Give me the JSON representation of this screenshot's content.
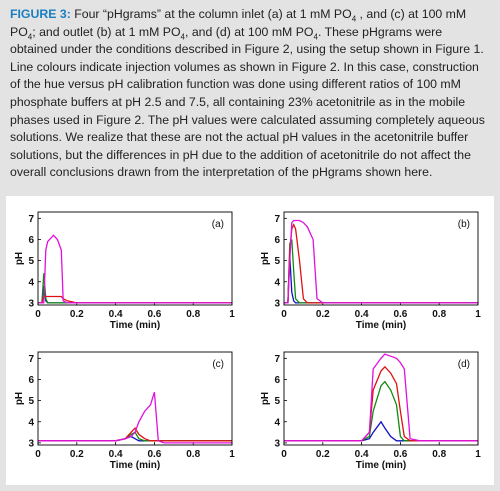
{
  "caption": {
    "label": "FIGURE 3:",
    "parts": [
      " Four “pHgrams” at the column inlet (a) at 1 mM PO",
      "4",
      " , and (c) at 100 mM PO",
      "4",
      "; and outlet (b) at 1 mM PO",
      "4",
      ", and (d) at 100 mM PO",
      "4",
      ". These pHgrams were obtained under the conditions described in Figure 2, using the setup shown in Figure 1. Line colours indicate injection volumes as shown in Figure 2. In this case, construction of the hue versus pH calibration function was done using different ratios of 100 mM phosphate buffers at pH 2.5 and 7.5, all containing 23% acetonitrile as in the mobile phases used in Figure 2. The pH values were calculated assuming completely aqueous solutions. We realize that these are not the actual pH values in the acetonitrile buffer solutions, but the differences in pH due to the addition of acetonitrile do not affect the overall conclusions drawn from the interpretation of the pHgrams shown here."
    ]
  },
  "chart_data": [
    {
      "type": "line",
      "annotation": "(a)",
      "xlabel": "Time (min)",
      "ylabel": "pH",
      "x": [
        0,
        0.02,
        0.03,
        0.04,
        0.05,
        0.08,
        0.1,
        0.12,
        0.13,
        0.15,
        0.2,
        1
      ],
      "series": [
        {
          "color": "#1010c0",
          "values": [
            3.0,
            3.0,
            3.8,
            3.1,
            3.0,
            3.0,
            3.0,
            3.0,
            3.0,
            3.0,
            3.0,
            3.0
          ]
        },
        {
          "color": "#128a12",
          "values": [
            3.0,
            3.0,
            4.4,
            3.2,
            3.0,
            3.0,
            3.0,
            3.0,
            3.0,
            3.0,
            3.0,
            3.0
          ]
        },
        {
          "color": "#e01010",
          "values": [
            3.0,
            3.0,
            3.3,
            3.3,
            3.3,
            3.3,
            3.3,
            3.3,
            3.2,
            3.1,
            3.0,
            3.0
          ]
        },
        {
          "color": "#e010e0",
          "values": [
            3.0,
            3.0,
            3.0,
            5.5,
            5.9,
            6.2,
            6.0,
            5.5,
            3.1,
            3.0,
            3.0,
            3.0
          ]
        }
      ],
      "xlim": [
        0,
        1
      ],
      "ylim": [
        2.9,
        7.3
      ],
      "xticks": [
        0,
        0.2,
        0.4,
        0.6,
        0.8,
        1
      ],
      "yticks": [
        3,
        4,
        5,
        6,
        7
      ]
    },
    {
      "type": "line",
      "annotation": "(b)",
      "xlabel": "Time (min)",
      "ylabel": "pH",
      "x": [
        0,
        0.02,
        0.03,
        0.04,
        0.05,
        0.06,
        0.08,
        0.1,
        0.12,
        0.15,
        0.17,
        0.2,
        1
      ],
      "series": [
        {
          "color": "#1010c0",
          "values": [
            3.0,
            3.0,
            5.2,
            3.5,
            3.1,
            3.0,
            3.0,
            3.0,
            3.0,
            3.0,
            3.0,
            3.0,
            3.0
          ]
        },
        {
          "color": "#128a12",
          "values": [
            3.0,
            3.0,
            5.8,
            6.0,
            4.5,
            3.2,
            3.0,
            3.0,
            3.0,
            3.0,
            3.0,
            3.0,
            3.0
          ]
        },
        {
          "color": "#e01010",
          "values": [
            3.0,
            3.0,
            5.5,
            6.5,
            6.7,
            6.5,
            5.0,
            3.2,
            3.0,
            3.0,
            3.0,
            3.0,
            3.0
          ]
        },
        {
          "color": "#e010e0",
          "values": [
            3.0,
            3.0,
            5.0,
            6.8,
            6.9,
            6.9,
            6.9,
            6.8,
            6.6,
            6.0,
            3.2,
            3.0,
            3.0
          ]
        }
      ],
      "xlim": [
        0,
        1
      ],
      "ylim": [
        2.9,
        7.3
      ],
      "xticks": [
        0,
        0.2,
        0.4,
        0.6,
        0.8,
        1
      ],
      "yticks": [
        3,
        4,
        5,
        6,
        7
      ]
    },
    {
      "type": "line",
      "annotation": "(c)",
      "xlabel": "Time (min)",
      "ylabel": "pH",
      "x": [
        0,
        0.4,
        0.45,
        0.48,
        0.5,
        0.52,
        0.55,
        0.58,
        0.6,
        0.62,
        0.65,
        0.7,
        1
      ],
      "series": [
        {
          "color": "#1010c0",
          "values": [
            3.1,
            3.1,
            3.2,
            3.3,
            3.2,
            3.1,
            3.1,
            3.1,
            3.1,
            3.1,
            3.1,
            3.1,
            3.1
          ]
        },
        {
          "color": "#128a12",
          "values": [
            3.1,
            3.1,
            3.2,
            3.4,
            3.5,
            3.2,
            3.1,
            3.1,
            3.1,
            3.1,
            3.1,
            3.1,
            3.1
          ]
        },
        {
          "color": "#e01010",
          "values": [
            3.1,
            3.1,
            3.2,
            3.5,
            3.7,
            3.4,
            3.2,
            3.1,
            3.1,
            3.1,
            3.1,
            3.1,
            3.1
          ]
        },
        {
          "color": "#e010e0",
          "values": [
            3.1,
            3.1,
            3.2,
            3.3,
            3.5,
            4.0,
            4.5,
            4.8,
            5.4,
            3.1,
            3.0,
            3.0,
            3.0
          ]
        }
      ],
      "xlim": [
        0,
        1
      ],
      "ylim": [
        2.9,
        7.3
      ],
      "xticks": [
        0,
        0.2,
        0.4,
        0.6,
        0.8,
        1
      ],
      "yticks": [
        3,
        4,
        5,
        6,
        7
      ]
    },
    {
      "type": "line",
      "annotation": "(d)",
      "xlabel": "Time (min)",
      "ylabel": "pH",
      "x": [
        0,
        0.4,
        0.44,
        0.46,
        0.5,
        0.52,
        0.55,
        0.58,
        0.6,
        0.62,
        0.65,
        0.7,
        1
      ],
      "series": [
        {
          "color": "#1010c0",
          "values": [
            3.1,
            3.1,
            3.2,
            3.5,
            4.0,
            3.7,
            3.3,
            3.1,
            3.1,
            3.1,
            3.1,
            3.1,
            3.1
          ]
        },
        {
          "color": "#128a12",
          "values": [
            3.1,
            3.1,
            3.3,
            4.5,
            5.7,
            5.9,
            5.5,
            4.8,
            3.3,
            3.1,
            3.1,
            3.1,
            3.1
          ]
        },
        {
          "color": "#e01010",
          "values": [
            3.1,
            3.1,
            3.5,
            5.5,
            6.4,
            6.6,
            6.3,
            5.8,
            4.5,
            3.3,
            3.1,
            3.1,
            3.1
          ]
        },
        {
          "color": "#e010e0",
          "values": [
            3.1,
            3.1,
            3.5,
            6.5,
            7.0,
            7.2,
            7.1,
            7.0,
            6.8,
            6.5,
            3.2,
            3.1,
            3.1
          ]
        }
      ],
      "xlim": [
        0,
        1
      ],
      "ylim": [
        2.9,
        7.3
      ],
      "xticks": [
        0,
        0.2,
        0.4,
        0.6,
        0.8,
        1
      ],
      "yticks": [
        3,
        4,
        5,
        6,
        7
      ]
    }
  ]
}
